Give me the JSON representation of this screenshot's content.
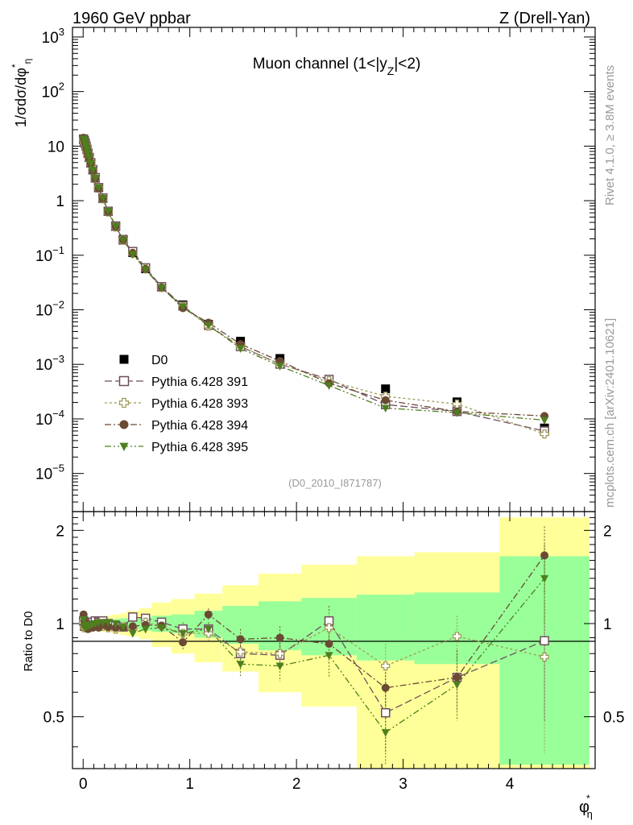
{
  "header": {
    "left_title": "1960 GeV ppbar",
    "right_title": "Z (Drell-Yan)"
  },
  "side_labels": {
    "rivet": "Rivet 4.1.0, ≥ 3.8M events",
    "mcplots": "mcplots.cern.ch [arXiv:2401.10621]"
  },
  "chart_data": {
    "type": "scatter",
    "title": "Muon channel (1<|y_Z|<2)",
    "title_parts": [
      "Muon channel (1<|y",
      "Z",
      "|<2)"
    ],
    "analysis_id": "(D0_2010_I871787)",
    "xlabel": "φ*",
    "xlabel_parts": [
      "φ",
      "*",
      "η"
    ],
    "ylabel": "1/σdσ/dφ*η",
    "ylabel_parts": [
      "1/σdσ/dφ",
      "*",
      "η"
    ],
    "xlim": [
      -0.1,
      4.8
    ],
    "ylim": [
      2e-06,
      1500
    ],
    "yscale": "log",
    "main_ticks": {
      "x": [
        "0",
        "1",
        "2",
        "3",
        "4"
      ],
      "y": [
        {
          "base": "10",
          "exp": "3",
          "value": 1000
        },
        {
          "base": "10",
          "exp": "2",
          "value": 100
        },
        {
          "base": "10",
          "exp": "",
          "value": 10
        },
        {
          "base": "1",
          "exp": "",
          "value": 1
        },
        {
          "base": "10",
          "exp": "−1",
          "value": 0.1
        },
        {
          "base": "10",
          "exp": "−2",
          "value": 0.01
        },
        {
          "base": "10",
          "exp": "−3",
          "value": 0.001
        },
        {
          "base": "10",
          "exp": "−4",
          "value": 0.0001
        },
        {
          "base": "10",
          "exp": "−5",
          "value": 1e-05
        }
      ]
    },
    "x": [
      0.004,
      0.012,
      0.02,
      0.028,
      0.036,
      0.045,
      0.057,
      0.072,
      0.091,
      0.114,
      0.145,
      0.185,
      0.235,
      0.305,
      0.375,
      0.465,
      0.585,
      0.735,
      0.935,
      1.175,
      1.475,
      1.845,
      2.305,
      2.835,
      3.505,
      4.325
    ],
    "series": [
      {
        "name": "D0",
        "marker": "square",
        "color": "#000000",
        "values": [
          13.2,
          12.6,
          11.4,
          10.1,
          8.8,
          7.5,
          6.2,
          4.9,
          3.65,
          2.6,
          1.72,
          1.1,
          0.64,
          0.345,
          0.195,
          0.112,
          0.0565,
          0.0262,
          0.0123,
          0.0054,
          0.00265,
          0.00128,
          0.00052,
          0.000355,
          0.000205,
          6.8e-05
        ]
      },
      {
        "name": "Pythia 6.428 391",
        "marker": "open-square",
        "color": "#6e4f5e",
        "dash": "9,4",
        "values": [
          13.5,
          12.3,
          11.2,
          10.0,
          8.7,
          7.4,
          6.2,
          4.95,
          3.7,
          2.65,
          1.74,
          1.12,
          0.64,
          0.34,
          0.19,
          0.117,
          0.0588,
          0.0265,
          0.0118,
          0.0052,
          0.00212,
          0.00101,
          0.00053,
          0.000183,
          0.000137,
          6e-05
        ]
      },
      {
        "name": "Pythia 6.428 393",
        "marker": "open-cross",
        "color": "#a09a5a",
        "dash": "3,3",
        "values": [
          13.4,
          12.2,
          11.0,
          9.8,
          8.6,
          7.3,
          6.0,
          4.8,
          3.6,
          2.55,
          1.7,
          1.08,
          0.62,
          0.33,
          0.19,
          0.108,
          0.057,
          0.0256,
          0.0114,
          0.005,
          0.00215,
          0.00102,
          0.0005,
          0.00026,
          0.000187,
          5.3e-05
        ]
      },
      {
        "name": "Pythia 6.428 394",
        "marker": "circle",
        "color": "#6b4a34",
        "dash": "8,3,2,3",
        "values": [
          14.2,
          12.9,
          11.3,
          9.9,
          8.6,
          7.2,
          6.0,
          4.8,
          3.55,
          2.55,
          1.67,
          1.09,
          0.625,
          0.335,
          0.19,
          0.11,
          0.056,
          0.0258,
          0.0107,
          0.0058,
          0.00235,
          0.00115,
          0.00045,
          0.00022,
          0.000137,
          0.000113
        ]
      },
      {
        "name": "Pythia 6.428 395",
        "marker": "triangle-down",
        "color": "#4e7f1e",
        "dash": "8,3,2,3,2,3",
        "values": [
          13.6,
          12.4,
          11.1,
          9.9,
          8.7,
          7.4,
          6.15,
          4.85,
          3.65,
          2.6,
          1.74,
          1.11,
          0.645,
          0.34,
          0.19,
          0.104,
          0.0545,
          0.0255,
          0.0115,
          0.0052,
          0.00196,
          0.00093,
          0.00041,
          0.000158,
          0.00013,
          9.5e-05
        ]
      }
    ],
    "ratio": {
      "ylabel": "Ratio to D0",
      "ylim": [
        0.34,
        2.3
      ],
      "yscale": "log",
      "y_ticks": [
        "0.5",
        "1",
        "2"
      ],
      "y_tick_values": [
        0.5,
        1,
        2
      ],
      "bins": [
        0,
        0.008,
        0.016,
        0.024,
        0.032,
        0.04,
        0.05,
        0.064,
        0.08,
        0.102,
        0.126,
        0.164,
        0.206,
        0.264,
        0.346,
        0.404,
        0.526,
        0.644,
        0.826,
        1.044,
        1.306,
        1.644,
        2.046,
        2.564,
        3.106,
        3.904,
        4.746
      ],
      "band_inner": [
        0.02,
        0.02,
        0.02,
        0.02,
        0.02,
        0.02,
        0.02,
        0.02,
        0.02,
        0.025,
        0.025,
        0.03,
        0.03,
        0.035,
        0.04,
        0.04,
        0.05,
        0.06,
        0.07,
        0.1,
        0.14,
        0.18,
        0.21,
        0.24,
        0.26,
        0.65
      ],
      "band_outer_up": [
        0.04,
        0.04,
        0.04,
        0.04,
        0.04,
        0.04,
        0.04,
        0.04,
        0.045,
        0.05,
        0.05,
        0.06,
        0.06,
        0.07,
        0.08,
        0.1,
        0.12,
        0.17,
        0.2,
        0.25,
        0.33,
        0.45,
        0.55,
        0.65,
        0.7,
        1.2
      ],
      "band_outer_down": [
        0.04,
        0.04,
        0.04,
        0.04,
        0.04,
        0.04,
        0.04,
        0.04,
        0.045,
        0.05,
        0.05,
        0.06,
        0.06,
        0.07,
        0.08,
        0.09,
        0.11,
        0.16,
        0.2,
        0.25,
        0.3,
        0.4,
        0.46,
        0.7,
        0.7,
        0.7
      ],
      "series": [
        {
          "name": "Pythia 6.428 391",
          "values": [
            1.02,
            0.98,
            0.98,
            0.99,
            0.99,
            0.99,
            1.0,
            1.01,
            1.01,
            1.02,
            1.01,
            1.02,
            1.0,
            0.985,
            0.975,
            1.05,
            1.04,
            1.01,
            0.96,
            0.96,
            0.8,
            0.79,
            1.02,
            0.515,
            0.67,
            0.88
          ],
          "err": [
            0.02,
            0.02,
            0.02,
            0.02,
            0.02,
            0.02,
            0.02,
            0.02,
            0.02,
            0.02,
            0.02,
            0.02,
            0.02,
            0.02,
            0.02,
            0.03,
            0.03,
            0.03,
            0.05,
            0.05,
            0.07,
            0.08,
            0.12,
            0.13,
            0.15,
            0.4
          ]
        },
        {
          "name": "Pythia 6.428 393",
          "values": [
            1.01,
            0.97,
            0.97,
            0.97,
            0.98,
            0.97,
            0.97,
            0.98,
            0.99,
            0.98,
            0.99,
            0.98,
            0.97,
            0.96,
            0.975,
            0.965,
            1.01,
            0.98,
            0.93,
            0.93,
            0.81,
            0.8,
            0.97,
            0.73,
            0.91,
            0.78
          ],
          "err": [
            0.02,
            0.02,
            0.02,
            0.02,
            0.02,
            0.02,
            0.02,
            0.02,
            0.02,
            0.02,
            0.02,
            0.02,
            0.02,
            0.02,
            0.02,
            0.03,
            0.03,
            0.03,
            0.05,
            0.05,
            0.07,
            0.08,
            0.12,
            0.13,
            0.15,
            0.4
          ]
        },
        {
          "name": "Pythia 6.428 394",
          "values": [
            1.07,
            1.02,
            0.99,
            0.98,
            0.98,
            0.96,
            0.97,
            0.98,
            0.97,
            0.98,
            0.97,
            0.99,
            0.975,
            0.97,
            0.97,
            0.98,
            0.99,
            0.985,
            0.87,
            1.07,
            0.89,
            0.9,
            0.86,
            0.62,
            0.67,
            1.66
          ],
          "err": [
            0.02,
            0.02,
            0.02,
            0.02,
            0.02,
            0.02,
            0.02,
            0.02,
            0.02,
            0.02,
            0.02,
            0.02,
            0.02,
            0.02,
            0.02,
            0.03,
            0.03,
            0.03,
            0.05,
            0.05,
            0.07,
            0.08,
            0.12,
            0.13,
            0.15,
            0.4
          ]
        },
        {
          "name": "Pythia 6.428 395",
          "values": [
            1.03,
            0.98,
            0.97,
            0.98,
            0.99,
            0.98,
            0.99,
            0.99,
            1.0,
            1.0,
            1.01,
            1.01,
            1.01,
            1.0,
            0.975,
            0.93,
            0.96,
            0.97,
            0.93,
            0.96,
            0.74,
            0.73,
            0.79,
            0.445,
            0.635,
            1.4
          ],
          "err": [
            0.02,
            0.02,
            0.02,
            0.02,
            0.02,
            0.02,
            0.02,
            0.02,
            0.02,
            0.02,
            0.02,
            0.02,
            0.02,
            0.02,
            0.02,
            0.03,
            0.03,
            0.03,
            0.05,
            0.05,
            0.07,
            0.08,
            0.12,
            0.13,
            0.15,
            0.4
          ]
        }
      ]
    },
    "colors": {
      "band_outer": "#ffff99",
      "band_inner": "#99ff99"
    }
  }
}
